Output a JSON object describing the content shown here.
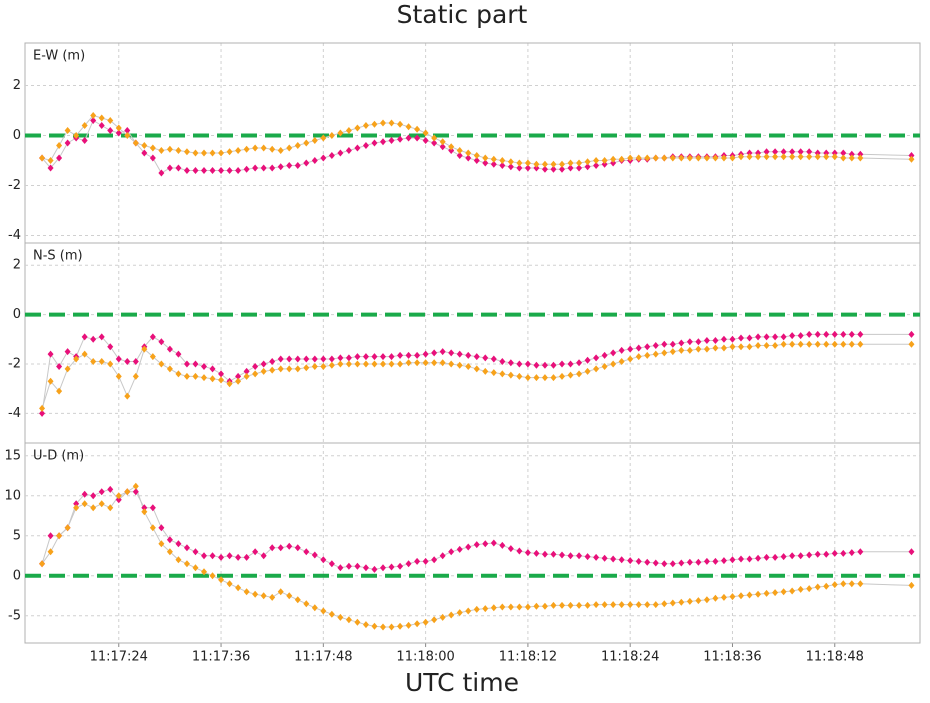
{
  "chart_data": {
    "type": "line",
    "title": "Static part",
    "xlabel": "UTC time",
    "x": [
      "11:17:15",
      "11:17:16",
      "11:17:17",
      "11:17:18",
      "11:17:19",
      "11:17:20",
      "11:17:21",
      "11:17:22",
      "11:17:23",
      "11:17:24",
      "11:17:25",
      "11:17:26",
      "11:17:27",
      "11:17:28",
      "11:17:29",
      "11:17:30",
      "11:17:31",
      "11:17:32",
      "11:17:33",
      "11:17:34",
      "11:17:35",
      "11:17:36",
      "11:17:37",
      "11:17:38",
      "11:17:39",
      "11:17:40",
      "11:17:41",
      "11:17:42",
      "11:17:43",
      "11:17:44",
      "11:17:45",
      "11:17:46",
      "11:17:47",
      "11:17:48",
      "11:17:49",
      "11:17:50",
      "11:17:51",
      "11:17:52",
      "11:17:53",
      "11:17:54",
      "11:17:55",
      "11:17:56",
      "11:17:57",
      "11:17:58",
      "11:17:59",
      "11:18:00",
      "11:18:01",
      "11:18:02",
      "11:18:03",
      "11:18:04",
      "11:18:05",
      "11:18:06",
      "11:18:07",
      "11:18:08",
      "11:18:09",
      "11:18:10",
      "11:18:11",
      "11:18:12",
      "11:18:13",
      "11:18:14",
      "11:18:15",
      "11:18:16",
      "11:18:17",
      "11:18:18",
      "11:18:19",
      "11:18:20",
      "11:18:21",
      "11:18:22",
      "11:18:23",
      "11:18:24",
      "11:18:25",
      "11:18:26",
      "11:18:27",
      "11:18:28",
      "11:18:29",
      "11:18:30",
      "11:18:31",
      "11:18:32",
      "11:18:33",
      "11:18:34",
      "11:18:35",
      "11:18:36",
      "11:18:37",
      "11:18:38",
      "11:18:39",
      "11:18:40",
      "11:18:41",
      "11:18:42",
      "11:18:43",
      "11:18:44",
      "11:18:45",
      "11:18:46",
      "11:18:47",
      "11:18:48",
      "11:18:49",
      "11:18:50",
      "11:18:51",
      "11:18:57"
    ],
    "xlim": [
      "11:17:13",
      "11:18:58"
    ],
    "xticks": [
      "11:17:24",
      "11:17:36",
      "11:17:48",
      "11:18:00",
      "11:18:12",
      "11:18:24",
      "11:18:36",
      "11:18:48"
    ],
    "grid": true,
    "hline": 0,
    "hline_color": "#1aaa4a",
    "line_color": "#c8c8c8",
    "panels": [
      {
        "ylabel": "E-W (m)",
        "ylim": [
          -4.3,
          3.7
        ],
        "yticks": [
          -4,
          -2,
          0,
          2
        ],
        "series": [
          {
            "color": "#e8107a",
            "values": [
              -0.9,
              -1.3,
              -0.9,
              -0.3,
              -0.1,
              -0.2,
              0.6,
              0.4,
              0.2,
              0.1,
              0.2,
              -0.3,
              -0.7,
              -0.9,
              -1.5,
              -1.3,
              -1.3,
              -1.4,
              -1.4,
              -1.4,
              -1.4,
              -1.4,
              -1.4,
              -1.4,
              -1.35,
              -1.3,
              -1.3,
              -1.3,
              -1.25,
              -1.2,
              -1.2,
              -1.1,
              -1.0,
              -0.9,
              -0.8,
              -0.7,
              -0.6,
              -0.5,
              -0.4,
              -0.3,
              -0.25,
              -0.2,
              -0.15,
              -0.1,
              -0.1,
              -0.2,
              -0.3,
              -0.45,
              -0.6,
              -0.8,
              -0.9,
              -1.0,
              -1.1,
              -1.15,
              -1.2,
              -1.25,
              -1.3,
              -1.3,
              -1.3,
              -1.35,
              -1.35,
              -1.35,
              -1.3,
              -1.3,
              -1.25,
              -1.2,
              -1.15,
              -1.1,
              -1.0,
              -1.0,
              -0.95,
              -0.95,
              -0.9,
              -0.9,
              -0.85,
              -0.85,
              -0.85,
              -0.85,
              -0.85,
              -0.85,
              -0.8,
              -0.8,
              -0.75,
              -0.7,
              -0.7,
              -0.65,
              -0.65,
              -0.65,
              -0.65,
              -0.65,
              -0.65,
              -0.7,
              -0.7,
              -0.7,
              -0.7,
              -0.75,
              -0.75,
              -0.8
            ]
          },
          {
            "color": "#f7a21b",
            "values": [
              -0.9,
              -1.0,
              -0.4,
              0.2,
              0.0,
              0.4,
              0.8,
              0.7,
              0.6,
              0.3,
              0.0,
              -0.3,
              -0.4,
              -0.5,
              -0.6,
              -0.55,
              -0.6,
              -0.65,
              -0.7,
              -0.7,
              -0.7,
              -0.7,
              -0.65,
              -0.6,
              -0.55,
              -0.5,
              -0.5,
              -0.55,
              -0.6,
              -0.5,
              -0.4,
              -0.3,
              -0.2,
              -0.1,
              0.0,
              0.1,
              0.2,
              0.3,
              0.4,
              0.45,
              0.5,
              0.5,
              0.45,
              0.35,
              0.25,
              0.1,
              -0.1,
              -0.25,
              -0.45,
              -0.6,
              -0.7,
              -0.8,
              -0.9,
              -0.95,
              -1.0,
              -1.05,
              -1.1,
              -1.1,
              -1.15,
              -1.15,
              -1.15,
              -1.15,
              -1.1,
              -1.1,
              -1.05,
              -1.0,
              -1.0,
              -0.95,
              -0.95,
              -0.9,
              -0.9,
              -0.9,
              -0.9,
              -0.9,
              -0.9,
              -0.9,
              -0.9,
              -0.9,
              -0.9,
              -0.9,
              -0.9,
              -0.9,
              -0.85,
              -0.85,
              -0.85,
              -0.85,
              -0.85,
              -0.85,
              -0.85,
              -0.85,
              -0.85,
              -0.85,
              -0.85,
              -0.85,
              -0.9,
              -0.9,
              -0.9,
              -0.95
            ]
          }
        ]
      },
      {
        "ylabel": "N-S (m)",
        "ylim": [
          -5.2,
          2.9
        ],
        "yticks": [
          -4,
          -2,
          0,
          2
        ],
        "series": [
          {
            "color": "#e8107a",
            "values": [
              -4.0,
              -1.6,
              -2.1,
              -1.5,
              -1.7,
              -0.9,
              -1.0,
              -0.9,
              -1.3,
              -1.8,
              -1.9,
              -1.9,
              -1.3,
              -0.9,
              -1.1,
              -1.4,
              -1.6,
              -2.0,
              -2.0,
              -2.1,
              -2.2,
              -2.4,
              -2.7,
              -2.5,
              -2.3,
              -2.1,
              -2.0,
              -1.9,
              -1.8,
              -1.8,
              -1.8,
              -1.8,
              -1.8,
              -1.8,
              -1.8,
              -1.75,
              -1.75,
              -1.7,
              -1.7,
              -1.7,
              -1.7,
              -1.7,
              -1.65,
              -1.65,
              -1.65,
              -1.6,
              -1.55,
              -1.5,
              -1.55,
              -1.6,
              -1.65,
              -1.7,
              -1.75,
              -1.8,
              -1.9,
              -1.95,
              -2.0,
              -2.0,
              -2.05,
              -2.05,
              -2.05,
              -2.0,
              -2.0,
              -1.95,
              -1.85,
              -1.75,
              -1.65,
              -1.55,
              -1.45,
              -1.4,
              -1.35,
              -1.3,
              -1.25,
              -1.2,
              -1.2,
              -1.15,
              -1.1,
              -1.1,
              -1.05,
              -1.05,
              -1.0,
              -1.0,
              -0.95,
              -0.95,
              -0.9,
              -0.9,
              -0.9,
              -0.9,
              -0.85,
              -0.85,
              -0.8,
              -0.8,
              -0.8,
              -0.8,
              -0.8,
              -0.8,
              -0.8,
              -0.8
            ]
          },
          {
            "color": "#f7a21b",
            "values": [
              -3.8,
              -2.7,
              -3.1,
              -2.2,
              -1.8,
              -1.6,
              -1.9,
              -1.9,
              -2.0,
              -2.5,
              -3.3,
              -2.5,
              -1.4,
              -1.7,
              -2.0,
              -2.2,
              -2.4,
              -2.5,
              -2.5,
              -2.55,
              -2.6,
              -2.65,
              -2.8,
              -2.7,
              -2.5,
              -2.4,
              -2.3,
              -2.25,
              -2.2,
              -2.2,
              -2.2,
              -2.15,
              -2.1,
              -2.1,
              -2.05,
              -2.0,
              -2.0,
              -2.0,
              -2.0,
              -2.0,
              -2.0,
              -2.0,
              -2.0,
              -1.95,
              -1.95,
              -1.95,
              -1.95,
              -1.95,
              -2.0,
              -2.05,
              -2.1,
              -2.2,
              -2.3,
              -2.35,
              -2.4,
              -2.45,
              -2.5,
              -2.55,
              -2.55,
              -2.55,
              -2.55,
              -2.5,
              -2.45,
              -2.4,
              -2.3,
              -2.2,
              -2.1,
              -2.0,
              -1.9,
              -1.8,
              -1.7,
              -1.65,
              -1.6,
              -1.55,
              -1.5,
              -1.45,
              -1.45,
              -1.4,
              -1.4,
              -1.35,
              -1.35,
              -1.3,
              -1.3,
              -1.3,
              -1.25,
              -1.25,
              -1.25,
              -1.2,
              -1.2,
              -1.2,
              -1.2,
              -1.2,
              -1.2,
              -1.2,
              -1.2,
              -1.2,
              -1.2,
              -1.2
            ]
          }
        ]
      },
      {
        "ylabel": "U-D (m)",
        "ylim": [
          -8.4,
          16.6
        ],
        "yticks": [
          -5,
          0,
          5,
          10,
          15
        ],
        "series": [
          {
            "color": "#e8107a",
            "values": [
              1.5,
              5.0,
              5.0,
              6.0,
              9.0,
              10.2,
              10.0,
              10.5,
              10.8,
              9.5,
              10.5,
              10.5,
              8.5,
              8.5,
              6.0,
              4.5,
              4.0,
              3.5,
              3.0,
              2.5,
              2.5,
              2.3,
              2.5,
              2.3,
              2.3,
              3.0,
              2.5,
              3.5,
              3.5,
              3.7,
              3.5,
              3.0,
              2.6,
              2.0,
              1.5,
              1.0,
              1.2,
              1.2,
              1.0,
              0.8,
              1.0,
              1.1,
              1.2,
              1.5,
              1.8,
              1.8,
              2.0,
              2.5,
              3.0,
              3.3,
              3.6,
              3.9,
              4.0,
              4.1,
              3.8,
              3.4,
              3.1,
              2.9,
              2.8,
              2.7,
              2.7,
              2.6,
              2.5,
              2.5,
              2.4,
              2.3,
              2.2,
              2.1,
              2.0,
              1.9,
              1.8,
              1.7,
              1.6,
              1.5,
              1.5,
              1.6,
              1.7,
              1.7,
              1.8,
              1.8,
              1.9,
              2.0,
              2.1,
              2.1,
              2.2,
              2.3,
              2.3,
              2.4,
              2.5,
              2.5,
              2.6,
              2.7,
              2.7,
              2.8,
              2.8,
              2.9,
              3.0,
              3.0
            ]
          },
          {
            "color": "#f7a21b",
            "values": [
              1.5,
              3.0,
              5.0,
              6.0,
              8.5,
              9.0,
              8.5,
              9.0,
              8.5,
              10.0,
              10.5,
              11.2,
              8.0,
              6.0,
              4.0,
              3.0,
              2.0,
              1.5,
              1.0,
              0.5,
              0.0,
              -0.5,
              -1.0,
              -1.5,
              -2.0,
              -2.3,
              -2.5,
              -2.7,
              -2.0,
              -2.5,
              -3.0,
              -3.5,
              -4.0,
              -4.4,
              -4.8,
              -5.2,
              -5.5,
              -5.8,
              -6.1,
              -6.3,
              -6.4,
              -6.4,
              -6.3,
              -6.2,
              -6.0,
              -5.8,
              -5.5,
              -5.2,
              -4.9,
              -4.6,
              -4.4,
              -4.2,
              -4.1,
              -4.0,
              -3.9,
              -3.9,
              -3.9,
              -3.9,
              -3.8,
              -3.8,
              -3.7,
              -3.7,
              -3.7,
              -3.7,
              -3.7,
              -3.6,
              -3.6,
              -3.6,
              -3.6,
              -3.6,
              -3.6,
              -3.6,
              -3.6,
              -3.5,
              -3.4,
              -3.3,
              -3.2,
              -3.1,
              -3.0,
              -2.8,
              -2.7,
              -2.6,
              -2.5,
              -2.4,
              -2.3,
              -2.2,
              -2.1,
              -2.0,
              -1.9,
              -1.7,
              -1.6,
              -1.4,
              -1.3,
              -1.1,
              -1.0,
              -1.0,
              -1.0,
              -1.2
            ]
          }
        ]
      }
    ]
  }
}
